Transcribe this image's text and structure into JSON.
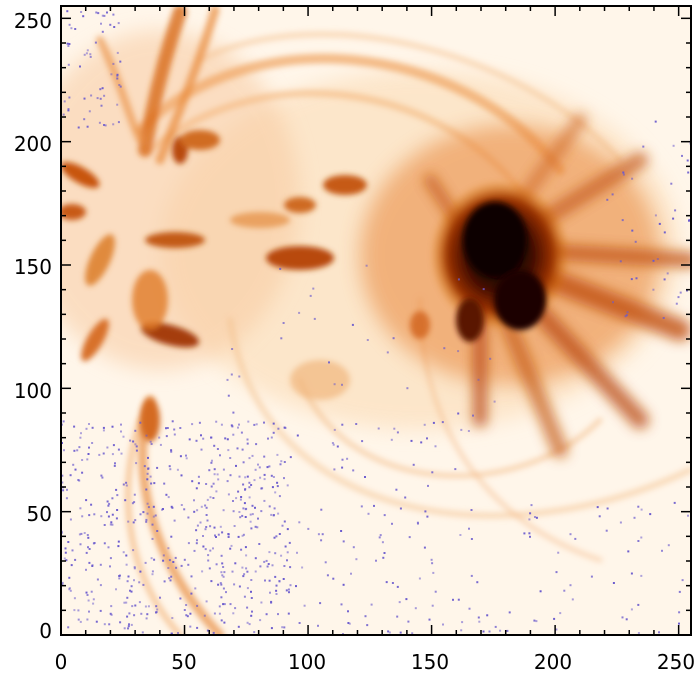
{
  "image": {
    "description_colormap": "orange-heat",
    "background": "#fff7ec",
    "emission_color": "#e07a1a",
    "core_color": "#1a0400",
    "noise_color": "#6a5acd",
    "axis_color": "#000000"
  },
  "axes": {
    "x_range": [
      0,
      255
    ],
    "y_range": [
      0,
      255
    ],
    "x_tick_labels": [
      "0",
      "50",
      "100",
      "150",
      "200",
      "250"
    ],
    "y_tick_labels": [
      "0",
      "50",
      "100",
      "150",
      "200",
      "250"
    ],
    "x_tick_values": [
      0,
      50,
      100,
      150,
      200,
      250
    ],
    "y_tick_values": [
      0,
      50,
      100,
      150,
      200,
      250
    ]
  }
}
